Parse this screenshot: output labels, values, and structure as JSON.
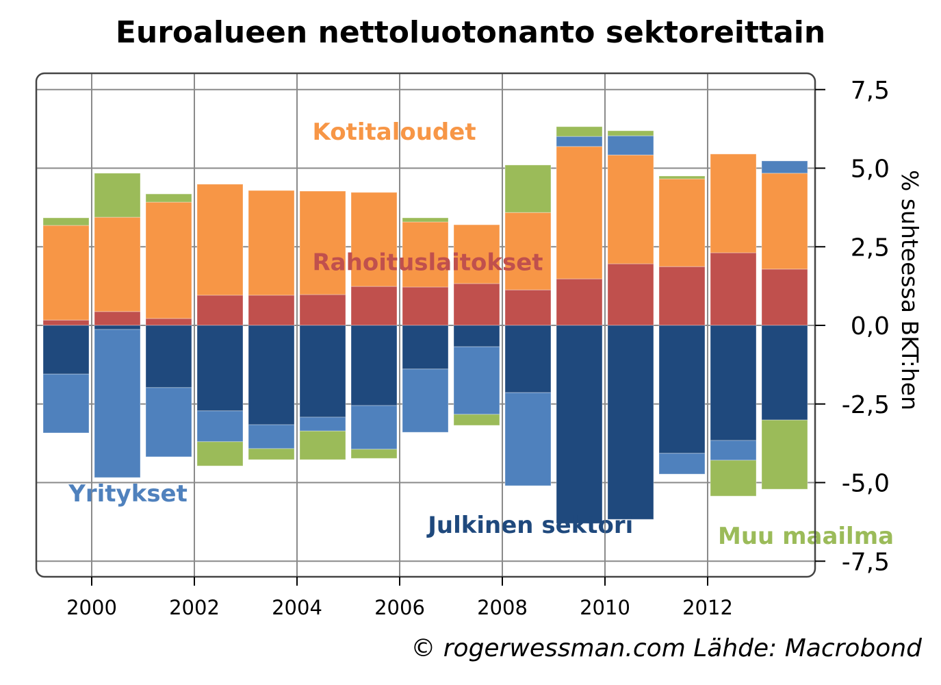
{
  "chart_data": {
    "type": "bar",
    "stacked": true,
    "title": "Euroalueen nettoluotonanto sektoreittain",
    "xlabel": "",
    "ylabel": "% suhteessa BKT:hen",
    "ylim": [
      -8.0,
      8.0
    ],
    "yticks": [
      7.5,
      5.0,
      2.5,
      0.0,
      -2.5,
      -5.0,
      -7.5
    ],
    "ytick_labels": [
      "7,5",
      "5,0",
      "2,5",
      "0,0",
      "-2,5",
      "-5,0",
      "-7,5"
    ],
    "xticks": [
      2000,
      2002,
      2004,
      2006,
      2008,
      2010,
      2012
    ],
    "xtick_labels": [
      "2000",
      "2002",
      "2004",
      "2006",
      "2008",
      "2010",
      "2012"
    ],
    "xlim": [
      1999,
      2014
    ],
    "grid": true,
    "yaxis_side": "right",
    "categories": [
      1999,
      2000,
      2001,
      2002,
      2003,
      2004,
      2005,
      2006,
      2007,
      2008,
      2009,
      2010,
      2011,
      2012,
      2013
    ],
    "series": [
      {
        "name": "Rahoituslaitokset",
        "color": "#C0504D",
        "values": [
          0.17,
          0.44,
          0.22,
          0.96,
          0.96,
          0.98,
          1.24,
          1.22,
          1.33,
          1.13,
          1.48,
          1.96,
          1.87,
          2.31,
          1.79
        ]
      },
      {
        "name": "Kotitaloudet",
        "color": "#F79646",
        "values": [
          3.01,
          3.0,
          3.7,
          3.53,
          3.33,
          3.29,
          2.99,
          2.07,
          1.87,
          2.46,
          4.21,
          3.46,
          2.79,
          3.14,
          3.05
        ]
      },
      {
        "name": "Julkinen sektori",
        "color": "#1F497D",
        "values": [
          -1.55,
          -0.13,
          -1.98,
          -2.72,
          -3.16,
          -2.92,
          -2.55,
          -1.39,
          -0.68,
          -2.14,
          -6.3,
          -6.17,
          -4.07,
          -3.66,
          -3.01
        ]
      },
      {
        "name": "Yritykset",
        "color": "#4F81BD",
        "values": [
          -1.87,
          -4.71,
          -2.2,
          -0.98,
          -0.76,
          -0.44,
          -1.39,
          -2.01,
          -2.15,
          -2.96,
          0.32,
          0.61,
          -0.66,
          -0.63,
          0.39
        ]
      },
      {
        "name": "Muu maailma",
        "color": "#9BBB59",
        "values": [
          0.24,
          1.4,
          0.26,
          -0.77,
          -0.35,
          -0.91,
          -0.29,
          0.13,
          -0.35,
          1.51,
          0.31,
          0.16,
          0.09,
          -1.14,
          -2.2
        ]
      }
    ],
    "annotations": [
      {
        "text": "Kotitaloudet",
        "series": "Kotitaloudet",
        "x": 2004.3,
        "y": 5.9
      },
      {
        "text": "Rahoituslaitokset",
        "series": "Rahoituslaitokset",
        "x": 2004.3,
        "y": 1.75
      },
      {
        "text": "Yritykset",
        "series": "Yritykset",
        "x": 1999.55,
        "y": -5.6
      },
      {
        "text": "Julkinen sektori",
        "series": "Julkinen sektori",
        "x": 2006.55,
        "y": -6.6
      },
      {
        "text": "Muu maailma",
        "series": "Muu maailma",
        "x": 2012.2,
        "y": -6.95
      }
    ],
    "source": "© rogerwessman.com Lähde: Macrobond"
  }
}
